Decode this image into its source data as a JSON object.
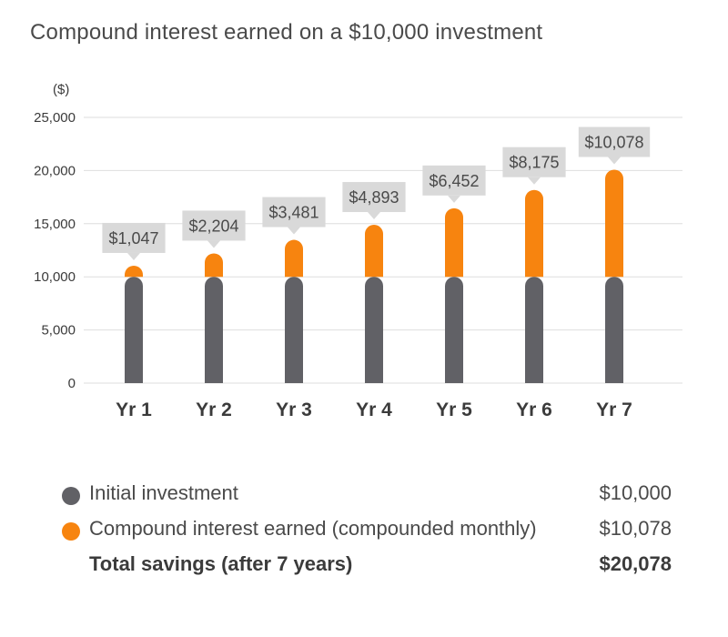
{
  "title": "Compound interest earned on a $10,000 investment",
  "colors": {
    "initial": "#616166",
    "interest": "#f7840f",
    "callout": "#d9d9d9",
    "grid": "#dedede"
  },
  "chart_data": {
    "type": "bar",
    "stacked": true,
    "unit_label": "($)",
    "categories": [
      "Yr 1",
      "Yr 2",
      "Yr 3",
      "Yr 4",
      "Yr 5",
      "Yr 6",
      "Yr 7"
    ],
    "series": [
      {
        "name": "Initial investment",
        "values": [
          10000,
          10000,
          10000,
          10000,
          10000,
          10000,
          10000
        ]
      },
      {
        "name": "Compound interest earned (compounded monthly)",
        "values": [
          1047,
          2204,
          3481,
          4893,
          6452,
          8175,
          10078
        ]
      }
    ],
    "data_labels": [
      "$1,047",
      "$2,204",
      "$3,481",
      "$4,893",
      "$6,452",
      "$8,175",
      "$10,078"
    ],
    "ylim": [
      0,
      25000
    ],
    "yticks": [
      0,
      5000,
      10000,
      15000,
      20000,
      25000
    ],
    "ytick_labels": [
      "0",
      "5,000",
      "10,000",
      "15,000",
      "20,000",
      "25,000"
    ],
    "grid": true
  },
  "legend": {
    "items": [
      {
        "label": "Initial investment",
        "value": "$10,000",
        "color_key": "initial"
      },
      {
        "label": "Compound interest earned (compounded monthly)",
        "value": "$10,078",
        "color_key": "interest"
      }
    ],
    "total": {
      "label": "Total savings (after 7 years)",
      "value": "$20,078"
    }
  }
}
